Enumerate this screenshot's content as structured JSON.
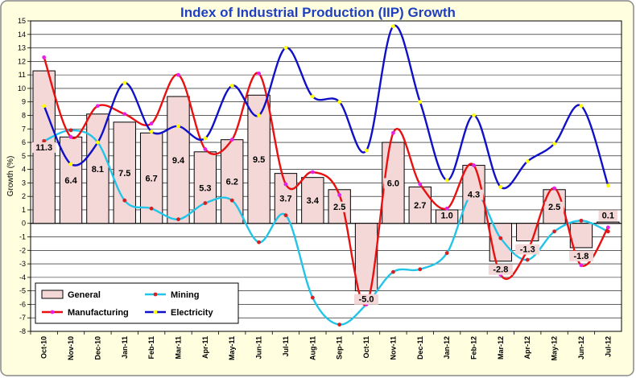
{
  "chart_data": {
    "type": "bar+line",
    "title": "Index of Industrial Production (IIP) Growth",
    "ylabel": "Growth (%)",
    "xlabel": "",
    "ylim": [
      -8,
      15
    ],
    "yticks": [
      -8,
      -7,
      -6,
      -5,
      -4,
      -3,
      -2,
      -1,
      0,
      1,
      2,
      3,
      4,
      5,
      6,
      7,
      8,
      9,
      10,
      11,
      12,
      13,
      14,
      15
    ],
    "grid": true,
    "legend_position": "bottom-left",
    "categories": [
      "Oct-10",
      "Nov-10",
      "Dec-10",
      "Jan-11",
      "Feb-11",
      "Mar-11",
      "Apr-11",
      "May-11",
      "Jun-11",
      "Jul-11",
      "Aug-11",
      "Sep-11",
      "Oct-11",
      "Nov-11",
      "Dec-11",
      "Jan-12",
      "Feb-12",
      "Mar-12",
      "Apr-12",
      "May-12",
      "Jun-12",
      "Jul-12"
    ],
    "series": [
      {
        "name": "General",
        "kind": "bar",
        "color": "#f4d7d7",
        "values": [
          11.3,
          6.4,
          8.1,
          7.5,
          6.7,
          9.4,
          5.3,
          6.2,
          9.5,
          3.7,
          3.4,
          2.5,
          -5.0,
          6.0,
          2.7,
          1.0,
          4.3,
          -2.8,
          -1.3,
          2.5,
          -1.8,
          0.1
        ],
        "labels": [
          "11.3",
          "6.4",
          "8.1",
          "7.5",
          "6.7",
          "9.4",
          "5.3",
          "6.2",
          "9.5",
          "3.7",
          "3.4",
          "2.5",
          "-5.0",
          "6.0",
          "2.7",
          "1.0",
          "4.3",
          "-2.8",
          "-1.3",
          "2.5",
          "-1.8",
          "0.1"
        ]
      },
      {
        "name": "Mining",
        "kind": "line",
        "color": "#22c4e8",
        "marker_color": "#d62020",
        "values": [
          6.1,
          6.9,
          6.0,
          1.7,
          1.1,
          0.3,
          1.5,
          1.7,
          -1.4,
          0.6,
          -5.5,
          -7.5,
          -6.0,
          -3.6,
          -3.4,
          -2.2,
          2.3,
          -1.1,
          -2.7,
          -0.6,
          0.2,
          -0.6
        ]
      },
      {
        "name": "Manufacturing",
        "kind": "line",
        "color": "#e81010",
        "marker_color": "#e820e8",
        "values": [
          12.3,
          6.4,
          8.7,
          8.1,
          7.4,
          11.0,
          5.5,
          6.2,
          11.1,
          2.9,
          3.8,
          2.1,
          -6.0,
          6.7,
          2.9,
          1.1,
          4.3,
          -3.8,
          -2.0,
          2.6,
          -3.1,
          -0.3
        ]
      },
      {
        "name": "Electricity",
        "kind": "line",
        "color": "#1010c8",
        "marker_color": "#ffff00",
        "values": [
          8.7,
          4.4,
          6.0,
          10.4,
          6.8,
          7.2,
          6.3,
          10.2,
          8.0,
          13.0,
          9.4,
          9.0,
          5.4,
          14.6,
          9.0,
          3.2,
          8.0,
          2.7,
          4.6,
          5.9,
          8.7,
          2.8
        ]
      }
    ]
  }
}
